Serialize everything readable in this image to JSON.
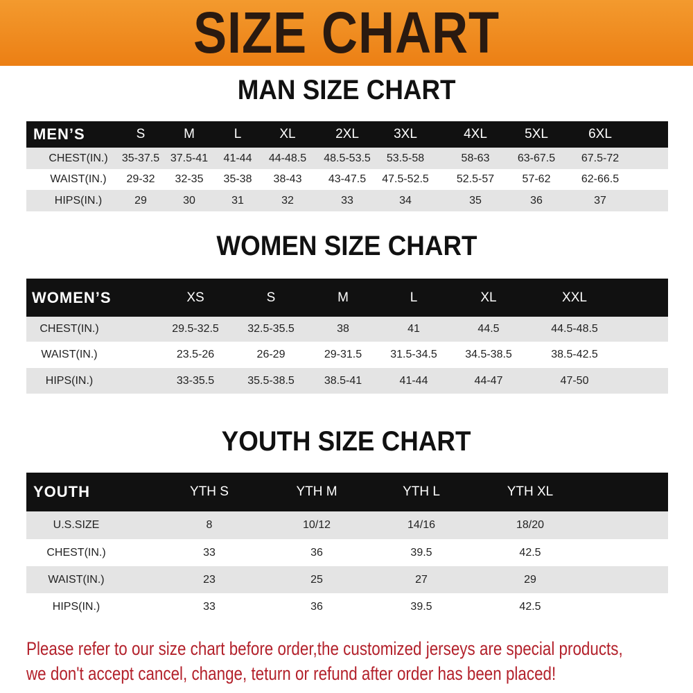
{
  "banner_title": "SIZE CHART",
  "colors": {
    "banner": "#ec7f14",
    "header_row": "#111111",
    "stripe": "#e4e4e4",
    "notice": "#b3212b"
  },
  "men": {
    "title": "MAN SIZE CHART",
    "header": [
      "MEN’S",
      "S",
      "M",
      "L",
      "XL",
      "2XL",
      "3XL",
      "4XL",
      "5XL",
      "6XL"
    ],
    "rows": [
      [
        "CHEST(IN.)",
        "35-37.5",
        "37.5-41",
        "41-44",
        "44-48.5",
        "48.5-53.5",
        "53.5-58",
        "58-63",
        "63-67.5",
        "67.5-72"
      ],
      [
        "WAIST(IN.)",
        "29-32",
        "32-35",
        "35-38",
        "38-43",
        "43-47.5",
        "47.5-52.5",
        "52.5-57",
        "57-62",
        "62-66.5"
      ],
      [
        "HIPS(IN.)",
        "29",
        "30",
        "31",
        "32",
        "33",
        "34",
        "35",
        "36",
        "37"
      ]
    ]
  },
  "women": {
    "title": "WOMEN SIZE CHART",
    "header": [
      "WOMEN’S",
      "XS",
      "S",
      "M",
      "L",
      "XL",
      "XXL"
    ],
    "rows": [
      [
        "CHEST(IN.)",
        "29.5-32.5",
        "32.5-35.5",
        "38",
        "41",
        "44.5",
        "44.5-48.5"
      ],
      [
        "WAIST(IN.)",
        "23.5-26",
        "26-29",
        "29-31.5",
        "31.5-34.5",
        "34.5-38.5",
        "38.5-42.5"
      ],
      [
        "HIPS(IN.)",
        "33-35.5",
        "35.5-38.5",
        "38.5-41",
        "41-44",
        "44-47",
        "47-50"
      ]
    ]
  },
  "youth": {
    "title": "YOUTH SIZE CHART",
    "header": [
      "YOUTH",
      "YTH S",
      "YTH M",
      "YTH L",
      "YTH XL"
    ],
    "rows": [
      [
        "U.S.SIZE",
        "8",
        "10/12",
        "14/16",
        "18/20"
      ],
      [
        "CHEST(IN.)",
        "33",
        "36",
        "39.5",
        "42.5"
      ],
      [
        "WAIST(IN.)",
        "23",
        "25",
        "27",
        "29"
      ],
      [
        "HIPS(IN.)",
        "33",
        "36",
        "39.5",
        "42.5"
      ]
    ]
  },
  "notice": [
    "Please refer to our size chart before order,the customized jerseys are special products,",
    "we don't accept cancel, change, teturn or refund after order has been placed!"
  ]
}
